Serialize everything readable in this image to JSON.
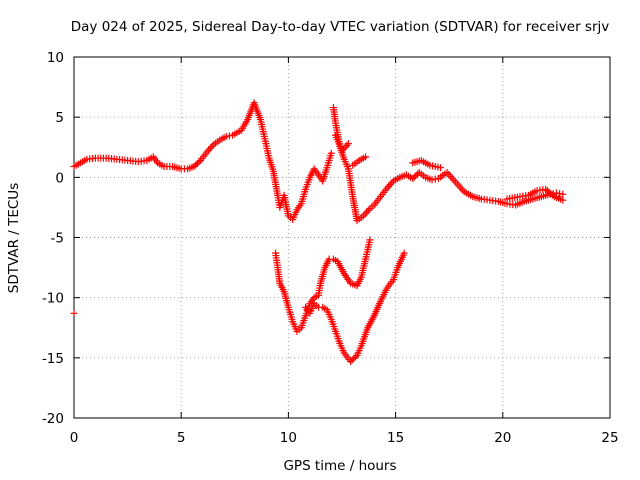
{
  "chart_data": {
    "type": "scatter",
    "title": "Day 024 of 2025, Sidereal Day-to-day VTEC variation (SDTVAR) for receiver srjv",
    "xlabel": "GPS time / hours",
    "ylabel": "SDTVAR / TECUs",
    "xlim": [
      0,
      25
    ],
    "ylim": [
      -20,
      10
    ],
    "xticks": [
      0,
      5,
      10,
      15,
      20,
      25
    ],
    "yticks": [
      -20,
      -15,
      -10,
      -5,
      0,
      5,
      10
    ],
    "grid": true,
    "legend": "none",
    "marker": "plus",
    "series": [
      {
        "color": "#ff0000",
        "points": [
          [
            0.0,
            0.9
          ],
          [
            0.3,
            1.2
          ],
          [
            0.6,
            1.5
          ],
          [
            1.0,
            1.6
          ],
          [
            1.5,
            1.6
          ],
          [
            2.0,
            1.5
          ],
          [
            2.5,
            1.4
          ],
          [
            3.0,
            1.3
          ],
          [
            3.4,
            1.4
          ],
          [
            3.7,
            1.7
          ],
          [
            3.9,
            1.2
          ],
          [
            4.2,
            0.9
          ],
          [
            4.6,
            0.9
          ],
          [
            5.0,
            0.7
          ],
          [
            5.3,
            0.7
          ],
          [
            5.6,
            0.9
          ],
          [
            5.9,
            1.4
          ],
          [
            6.2,
            2.1
          ],
          [
            6.5,
            2.7
          ],
          [
            6.8,
            3.1
          ],
          [
            7.1,
            3.4
          ],
          [
            7.4,
            3.5
          ],
          [
            7.8,
            3.9
          ],
          [
            8.1,
            4.8
          ],
          [
            8.4,
            6.2
          ],
          [
            8.7,
            4.8
          ],
          [
            8.9,
            3.2
          ],
          [
            9.1,
            1.6
          ],
          [
            9.3,
            0.5
          ],
          [
            9.5,
            -1.5
          ],
          [
            9.6,
            -2.5
          ],
          [
            9.8,
            -1.5
          ],
          [
            10.0,
            -3.2
          ],
          [
            10.2,
            -3.5
          ],
          [
            10.4,
            -2.7
          ],
          [
            10.6,
            -2.2
          ],
          [
            10.8,
            -1.0
          ],
          [
            11.0,
            0.0
          ],
          [
            11.2,
            0.7
          ],
          [
            11.4,
            0.2
          ],
          [
            11.6,
            -0.3
          ],
          [
            11.8,
            0.8
          ],
          [
            12.0,
            2.0
          ],
          [
            12.1,
            5.8
          ],
          [
            12.2,
            4.5
          ],
          [
            12.4,
            2.6
          ],
          [
            12.6,
            1.5
          ],
          [
            12.8,
            0.7
          ],
          [
            13.0,
            -1.6
          ],
          [
            13.2,
            -3.6
          ],
          [
            13.5,
            -3.2
          ],
          [
            13.8,
            -2.6
          ],
          [
            14.0,
            -2.3
          ],
          [
            14.3,
            -1.6
          ],
          [
            14.6,
            -0.9
          ],
          [
            14.9,
            -0.3
          ],
          [
            15.2,
            0.0
          ],
          [
            15.5,
            0.2
          ],
          [
            15.8,
            -0.1
          ],
          [
            16.1,
            0.4
          ],
          [
            16.4,
            0.0
          ],
          [
            16.7,
            -0.2
          ],
          [
            17.0,
            -0.1
          ],
          [
            17.4,
            0.4
          ],
          [
            17.8,
            -0.4
          ],
          [
            18.2,
            -1.2
          ],
          [
            18.6,
            -1.6
          ],
          [
            19.0,
            -1.8
          ],
          [
            19.4,
            -1.9
          ],
          [
            19.8,
            -2.0
          ],
          [
            20.2,
            -2.2
          ],
          [
            20.6,
            -2.3
          ],
          [
            21.0,
            -2.0
          ],
          [
            21.4,
            -1.8
          ],
          [
            21.8,
            -1.6
          ],
          [
            22.2,
            -1.4
          ],
          [
            22.5,
            -1.3
          ],
          [
            22.8,
            -1.4
          ],
          [
            13.0,
            1.0
          ],
          [
            13.3,
            1.4
          ],
          [
            13.6,
            1.7
          ],
          [
            12.2,
            3.5
          ],
          [
            12.5,
            2.2
          ],
          [
            12.8,
            2.8
          ],
          [
            15.8,
            1.2
          ],
          [
            16.2,
            1.4
          ],
          [
            16.6,
            1.0
          ],
          [
            17.1,
            0.8
          ],
          [
            20.2,
            -1.8
          ],
          [
            20.8,
            -1.6
          ],
          [
            21.2,
            -1.5
          ],
          [
            21.6,
            -1.1
          ],
          [
            22.0,
            -1.0
          ],
          [
            22.4,
            -1.6
          ],
          [
            22.8,
            -1.9
          ],
          [
            9.4,
            -6.3
          ],
          [
            9.5,
            -7.5
          ],
          [
            9.6,
            -8.8
          ],
          [
            9.8,
            -9.5
          ],
          [
            10.0,
            -10.8
          ],
          [
            10.2,
            -12.0
          ],
          [
            10.4,
            -12.8
          ],
          [
            10.6,
            -12.5
          ],
          [
            10.8,
            -11.5
          ],
          [
            11.0,
            -10.5
          ],
          [
            11.2,
            -10.0
          ],
          [
            11.4,
            -9.8
          ],
          [
            11.5,
            -8.8
          ],
          [
            11.7,
            -7.5
          ],
          [
            11.9,
            -6.8
          ],
          [
            12.1,
            -6.8
          ],
          [
            12.3,
            -7.0
          ],
          [
            12.6,
            -8.0
          ],
          [
            12.9,
            -8.8
          ],
          [
            13.2,
            -9.0
          ],
          [
            13.4,
            -8.3
          ],
          [
            13.6,
            -6.8
          ],
          [
            13.8,
            -5.2
          ],
          [
            10.8,
            -10.8
          ],
          [
            11.0,
            -11.3
          ],
          [
            11.2,
            -10.5
          ],
          [
            11.4,
            -10.8
          ],
          [
            11.6,
            -10.8
          ],
          [
            11.8,
            -11.0
          ],
          [
            12.0,
            -11.8
          ],
          [
            12.2,
            -12.8
          ],
          [
            12.4,
            -13.8
          ],
          [
            12.6,
            -14.6
          ],
          [
            12.9,
            -15.3
          ],
          [
            13.2,
            -14.8
          ],
          [
            13.4,
            -14.0
          ],
          [
            13.7,
            -12.5
          ],
          [
            14.0,
            -11.5
          ],
          [
            14.3,
            -10.3
          ],
          [
            14.6,
            -9.2
          ],
          [
            14.9,
            -8.5
          ],
          [
            15.1,
            -7.5
          ],
          [
            15.4,
            -6.3
          ],
          [
            0.0,
            -11.3
          ]
        ]
      }
    ]
  }
}
